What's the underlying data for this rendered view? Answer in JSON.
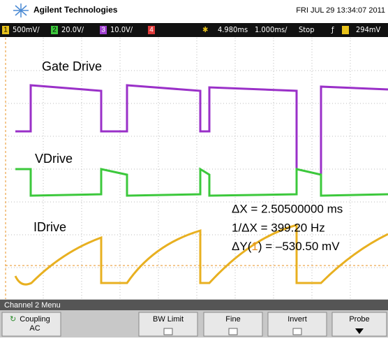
{
  "header": {
    "brand": "Agilent Technologies",
    "datetime": "FRI JUL 29 13:34:07 2011"
  },
  "status_bar": {
    "ch1": "500mV/",
    "ch2": "20.0V/",
    "ch3": "10.0V/",
    "delay": "4.980ms",
    "timebase": "1.000ms/",
    "state": "Stop",
    "trigger_level": "294mV"
  },
  "channels": {
    "ch1": "1",
    "ch2": "2",
    "ch3": "3",
    "ch4": "4"
  },
  "annotations": {
    "gate": "Gate Drive",
    "vdrive": "VDrive",
    "idrive": "IDrive",
    "dx": "ΔX = 2.50500000 ms",
    "inv_dx": "1/ΔX = 399.20 Hz",
    "dy_prefix": "ΔY(",
    "dy_ch": "1",
    "dy_suffix": ") = –530.50 mV"
  },
  "menu": {
    "title": "Channel 2 Menu",
    "buttons": [
      {
        "label": "Coupling",
        "value": "AC"
      },
      {
        "label": "BW Limit"
      },
      {
        "label": "Fine"
      },
      {
        "label": "Invert"
      },
      {
        "label": "Probe"
      }
    ]
  }
}
